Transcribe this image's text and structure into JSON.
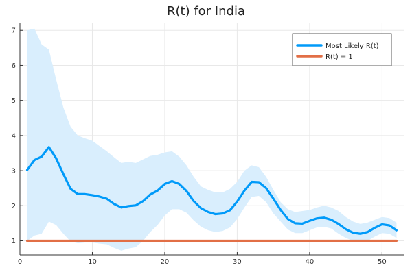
{
  "chart_data": {
    "type": "line",
    "title": "R(t) for India",
    "xlabel": "",
    "ylabel": "",
    "xlim": [
      0,
      53
    ],
    "ylim": [
      0.6,
      7.2
    ],
    "xticks": [
      0,
      10,
      20,
      30,
      40,
      50
    ],
    "yticks": [
      1,
      2,
      3,
      4,
      5,
      6,
      7
    ],
    "grid": true,
    "legend_position": "top-right",
    "colors": {
      "most_likely": "#009AF9",
      "band": "#D9EEFD",
      "r_one": "#E26F46"
    },
    "x": [
      1,
      2,
      3,
      4,
      5,
      6,
      7,
      8,
      9,
      10,
      11,
      12,
      13,
      14,
      15,
      16,
      17,
      18,
      19,
      20,
      21,
      22,
      23,
      24,
      25,
      26,
      27,
      28,
      29,
      30,
      31,
      32,
      33,
      34,
      35,
      36,
      37,
      38,
      39,
      40,
      41,
      42,
      43,
      44,
      45,
      46,
      47,
      48,
      49,
      50,
      51,
      52
    ],
    "series": [
      {
        "name": "Most Likely R(t)",
        "values": [
          3.02,
          3.3,
          3.4,
          3.67,
          3.35,
          2.9,
          2.48,
          2.33,
          2.33,
          2.3,
          2.26,
          2.2,
          2.05,
          1.95,
          1.99,
          2.01,
          2.13,
          2.32,
          2.43,
          2.62,
          2.7,
          2.62,
          2.42,
          2.13,
          1.93,
          1.82,
          1.76,
          1.78,
          1.87,
          2.12,
          2.43,
          2.68,
          2.67,
          2.5,
          2.2,
          1.88,
          1.62,
          1.5,
          1.49,
          1.57,
          1.64,
          1.66,
          1.6,
          1.48,
          1.33,
          1.23,
          1.2,
          1.25,
          1.37,
          1.47,
          1.44,
          1.3
        ]
      },
      {
        "name": "R(t) = 1",
        "values": [
          1,
          1,
          1,
          1,
          1,
          1,
          1,
          1,
          1,
          1,
          1,
          1,
          1,
          1,
          1,
          1,
          1,
          1,
          1,
          1,
          1,
          1,
          1,
          1,
          1,
          1,
          1,
          1,
          1,
          1,
          1,
          1,
          1,
          1,
          1,
          1,
          1,
          1,
          1,
          1,
          1,
          1,
          1,
          1,
          1,
          1,
          1,
          1,
          1,
          1,
          1,
          1
        ]
      }
    ],
    "band_upper": [
      7.0,
      7.05,
      6.6,
      6.45,
      5.6,
      4.8,
      4.25,
      4.0,
      3.92,
      3.85,
      3.7,
      3.55,
      3.38,
      3.22,
      3.25,
      3.22,
      3.32,
      3.42,
      3.45,
      3.52,
      3.55,
      3.4,
      3.15,
      2.82,
      2.55,
      2.45,
      2.38,
      2.38,
      2.48,
      2.68,
      3.0,
      3.15,
      3.1,
      2.82,
      2.45,
      2.1,
      1.9,
      1.82,
      1.85,
      1.88,
      1.95,
      2.0,
      1.95,
      1.85,
      1.68,
      1.55,
      1.48,
      1.52,
      1.6,
      1.68,
      1.65,
      1.52
    ],
    "band_lower": [
      1.0,
      1.15,
      1.2,
      1.55,
      1.45,
      1.2,
      0.98,
      0.93,
      0.95,
      0.95,
      0.92,
      0.9,
      0.8,
      0.72,
      0.78,
      0.82,
      1.0,
      1.25,
      1.45,
      1.72,
      1.9,
      1.9,
      1.8,
      1.58,
      1.4,
      1.3,
      1.25,
      1.28,
      1.38,
      1.62,
      1.95,
      2.25,
      2.28,
      2.1,
      1.78,
      1.55,
      1.32,
      1.22,
      1.22,
      1.3,
      1.38,
      1.4,
      1.35,
      1.2,
      1.08,
      1.0,
      0.96,
      1.0,
      1.12,
      1.22,
      1.2,
      1.08
    ]
  }
}
